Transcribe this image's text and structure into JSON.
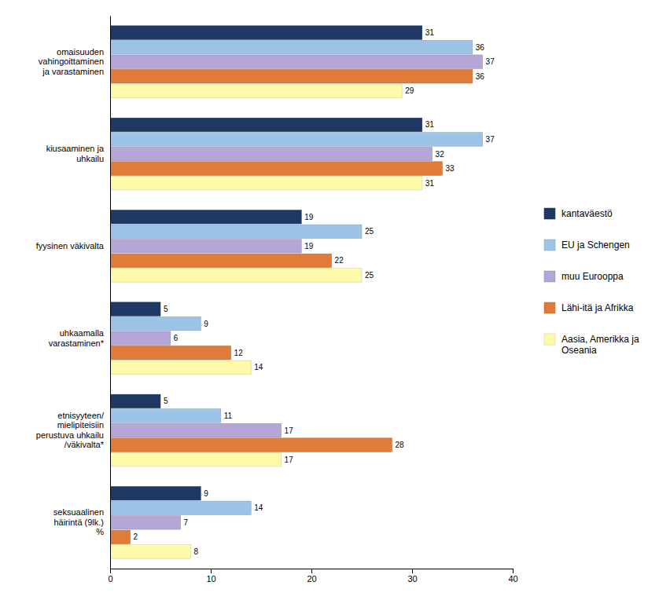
{
  "chart_data": {
    "type": "bar",
    "orientation": "horizontal",
    "categories": [
      "omaisuuden\nvahingoittaminen\nja varastaminen",
      "kiusaaminen ja\nuhkailu",
      "fyysinen väkivalta",
      "uhkaamalla\nvarastaminen*",
      "etnisyyteen/\nmielipiteisiin\nperustuva uhkailu\n/väkivalta*",
      "seksuaalinen\nhäirintä (9lk.)\n%"
    ],
    "series": [
      {
        "name": "kantaväestö",
        "color": "#1F3864",
        "values": [
          31,
          31,
          19,
          5,
          5,
          9
        ]
      },
      {
        "name": "EU ja Schengen",
        "color": "#9DC3E6",
        "values": [
          36,
          37,
          25,
          9,
          11,
          14
        ]
      },
      {
        "name": "muu Eurooppa",
        "color": "#B4A7D6",
        "values": [
          37,
          32,
          19,
          6,
          17,
          7
        ]
      },
      {
        "name": "Lähi-itä ja Afrikka",
        "color": "#E07B39",
        "values": [
          36,
          33,
          22,
          12,
          28,
          2
        ]
      },
      {
        "name": "Aasia, Amerikka ja\nOseania",
        "color": "#FFFAAA",
        "values": [
          29,
          31,
          25,
          14,
          17,
          8
        ]
      }
    ],
    "xlim": [
      0,
      40
    ],
    "xticks": [
      0,
      10,
      20,
      30,
      40
    ],
    "grid": false,
    "legend": "right",
    "data_labels": true
  }
}
